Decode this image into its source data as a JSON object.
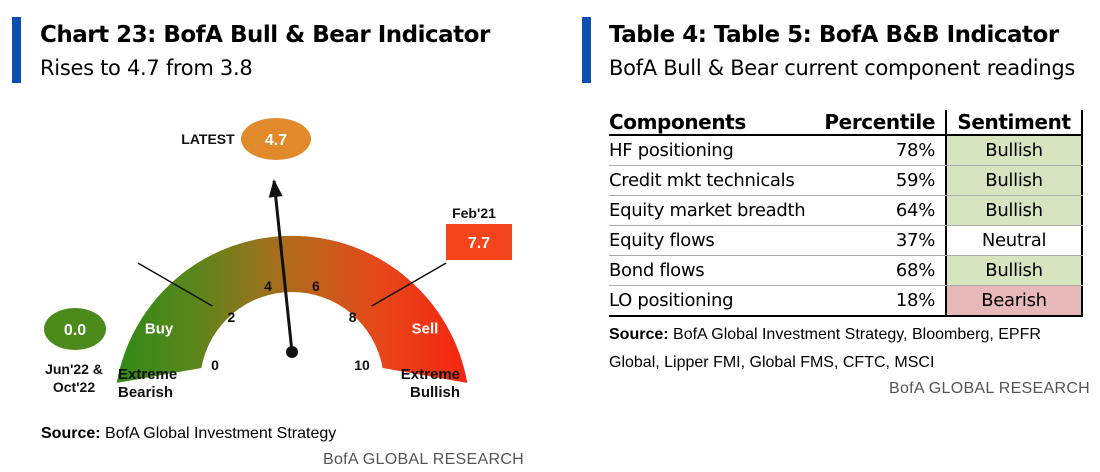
{
  "colors": {
    "accent": "#0b4fb3",
    "bullish_bg": "#d6e4bf",
    "neutral_bg": "#ffffff",
    "bearish_bg": "#e8b9b9",
    "buy_green": "#2f8a17",
    "sell_red": "#f22a12",
    "latest_orange": "#e08a2c",
    "feb21_red": "#f4441c"
  },
  "left": {
    "title": "Chart 23: BofA Bull & Bear Indicator",
    "subtitle": "Rises to 4.7 from 3.8",
    "source_label": "Source:",
    "source_text": "BofA Global Investment Strategy",
    "footer": "BofA GLOBAL RESEARCH"
  },
  "chart_data": {
    "type": "gauge",
    "title": "BofA Bull & Bear Indicator",
    "range": [
      0,
      10
    ],
    "tick_labels": [
      "0",
      "2",
      "4",
      "6",
      "8",
      "10"
    ],
    "zones": [
      {
        "label": "Buy",
        "from": 0,
        "to": 2
      },
      {
        "label": "Sell",
        "from": 8,
        "to": 10
      }
    ],
    "value": 4.7,
    "latest_label": "LATEST",
    "latest_value_text": "4.7",
    "min_annotation": {
      "value_text": "0.0",
      "label_line1": "Jun'22 &",
      "label_line2": "Oct'22"
    },
    "max_annotation": {
      "value_text": "7.7",
      "label": "Feb'21"
    },
    "extreme_bearish": [
      "Extreme",
      "Bearish"
    ],
    "extreme_bullish": [
      "Extreme",
      "Bullish"
    ]
  },
  "right": {
    "title": "Table 4: Table 5: BofA B&B Indicator",
    "subtitle": "BofA Bull & Bear current component readings",
    "headers": [
      "Components",
      "Percentile",
      "Sentiment"
    ],
    "rows": [
      {
        "component": "HF positioning",
        "percentile": "78%",
        "sentiment": "Bullish"
      },
      {
        "component": "Credit mkt technicals",
        "percentile": "59%",
        "sentiment": "Bullish"
      },
      {
        "component": "Equity market breadth",
        "percentile": "64%",
        "sentiment": "Bullish"
      },
      {
        "component": "Equity flows",
        "percentile": "37%",
        "sentiment": "Neutral"
      },
      {
        "component": "Bond flows",
        "percentile": "68%",
        "sentiment": "Bullish"
      },
      {
        "component": "LO positioning",
        "percentile": "18%",
        "sentiment": "Bearish"
      }
    ],
    "source_label": "Source:",
    "source_line1": "BofA Global Investment Strategy, Bloomberg, EPFR",
    "source_line2": "Global, Lipper FMI, Global FMS, CFTC, MSCI",
    "footer": "BofA GLOBAL RESEARCH"
  }
}
